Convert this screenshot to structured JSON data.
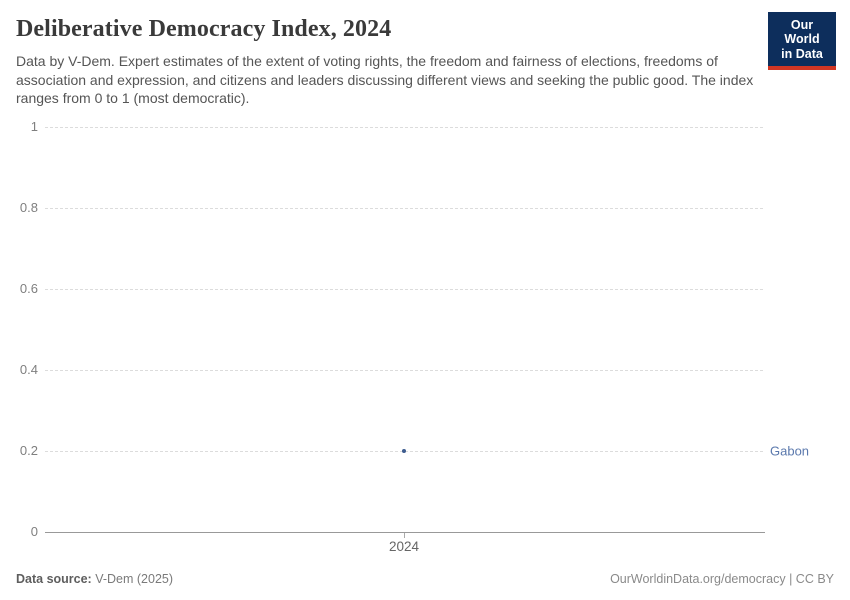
{
  "header": {
    "title": "Deliberative Democracy Index, 2024",
    "subtitle": "Data by V-Dem. Expert estimates of the extent of voting rights, the freedom and fairness of elections, freedoms of association and expression, and citizens and leaders discussing different views and seeking the public good. The index ranges from 0 to 1 (most democratic).",
    "logo": {
      "line1": "Our World",
      "line2": "in Data"
    }
  },
  "chart_data": {
    "type": "scatter",
    "title": "Deliberative Democracy Index, 2024",
    "x": [
      2024
    ],
    "xticks": [
      "2024"
    ],
    "series": [
      {
        "name": "Gabon",
        "values": [
          0.2
        ]
      }
    ],
    "xlabel": "",
    "ylabel": "",
    "ylim": [
      0,
      1
    ],
    "yticks": [
      0,
      0.2,
      0.4,
      0.6,
      0.8,
      1
    ],
    "grid": "horizontal-dashed",
    "legend_position": "entity-label-right"
  },
  "footer": {
    "source_label": "Data source:",
    "source_value": "V-Dem (2025)",
    "rights": "OurWorldinData.org/democracy | CC BY"
  },
  "colors": {
    "point": "#3d5c8f",
    "entity_label": "#5b79ad",
    "logo_bg": "#0d2e5c",
    "logo_accent": "#d13623"
  }
}
